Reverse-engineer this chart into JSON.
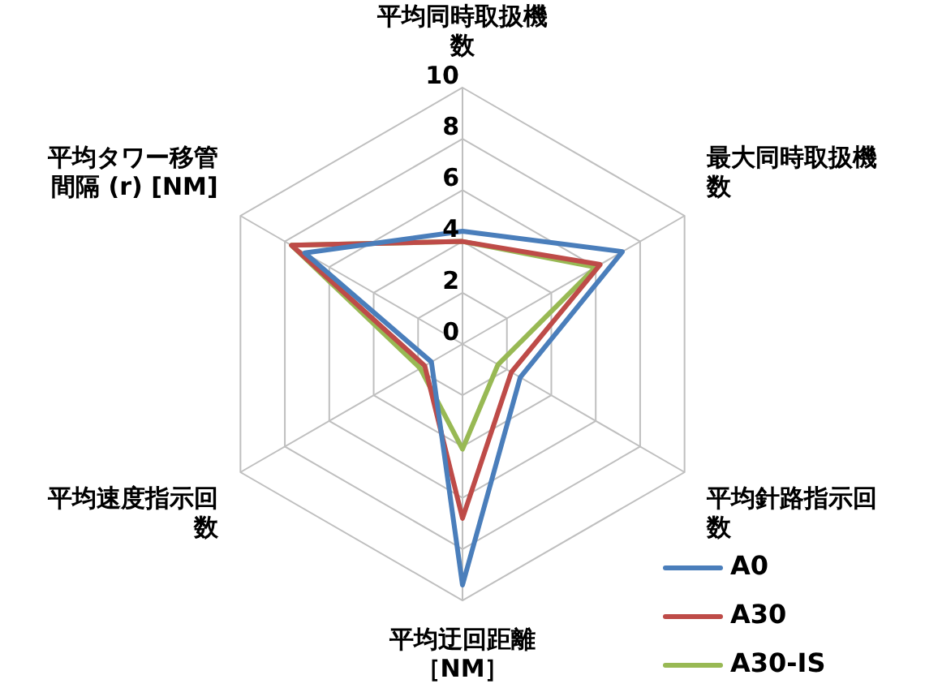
{
  "chart_data": {
    "type": "radar",
    "categories": [
      "平均同時取扱機数",
      "最大同時取扱機数",
      "平均針路指示回数",
      "平均迂回距離［NM］",
      "平均速度指示回数",
      "平均タワー移管間隔 (r) [NM]"
    ],
    "series": [
      {
        "name": "A0",
        "color": "#4a7ebb",
        "values": [
          4.4,
          7.2,
          2.6,
          9.4,
          1.4,
          7.1
        ]
      },
      {
        "name": "A30",
        "color": "#be4b48",
        "values": [
          4.0,
          6.2,
          2.2,
          6.8,
          1.7,
          7.7
        ]
      },
      {
        "name": "A30-IS",
        "color": "#98b954",
        "values": [
          4.0,
          6.0,
          1.6,
          4.1,
          1.9,
          7.7
        ]
      }
    ],
    "ylim": [
      0,
      10
    ],
    "yticks": [
      0,
      2,
      4,
      6,
      8,
      10
    ],
    "grid": true,
    "legend": "bottom right",
    "marker": "none"
  }
}
